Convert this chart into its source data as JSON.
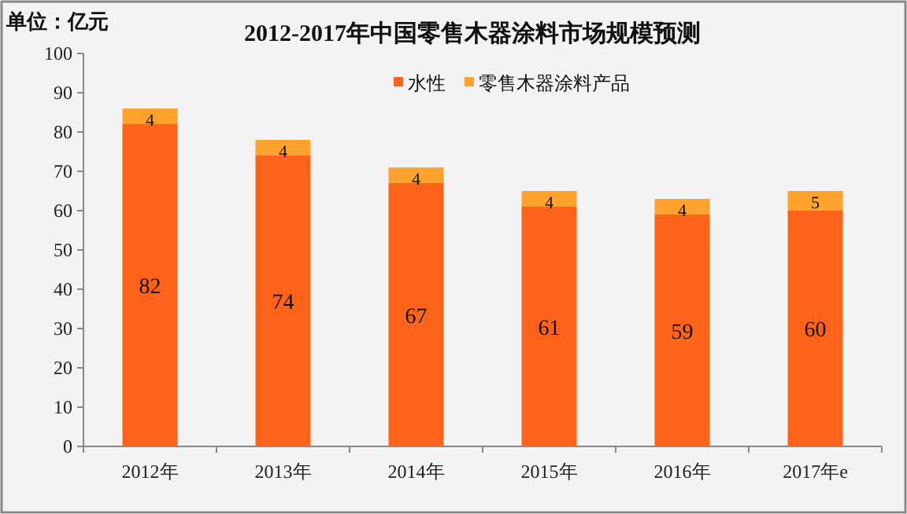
{
  "chart_data": {
    "type": "bar",
    "title": "2012-2017年中国零售木器涂料市场规模预测",
    "annotations": [
      "单位：亿元"
    ],
    "categories": [
      "2012年",
      "2013年",
      "2014年",
      "2015年",
      "2016年",
      "2017年e"
    ],
    "series": [
      {
        "name": "水性",
        "color": "#ff6319",
        "values": [
          82,
          74,
          67,
          61,
          59,
          60
        ]
      },
      {
        "name": "零售木器涂料产品",
        "color": "#ffa22e",
        "values": [
          4,
          4,
          4,
          4,
          4,
          5
        ]
      }
    ],
    "stacked": true,
    "data_labels": true,
    "legend": "top",
    "grid": false,
    "ylim": [
      0,
      100
    ],
    "yticks": [
      0,
      10,
      20,
      30,
      40,
      50,
      60,
      70,
      80,
      90,
      100
    ]
  }
}
